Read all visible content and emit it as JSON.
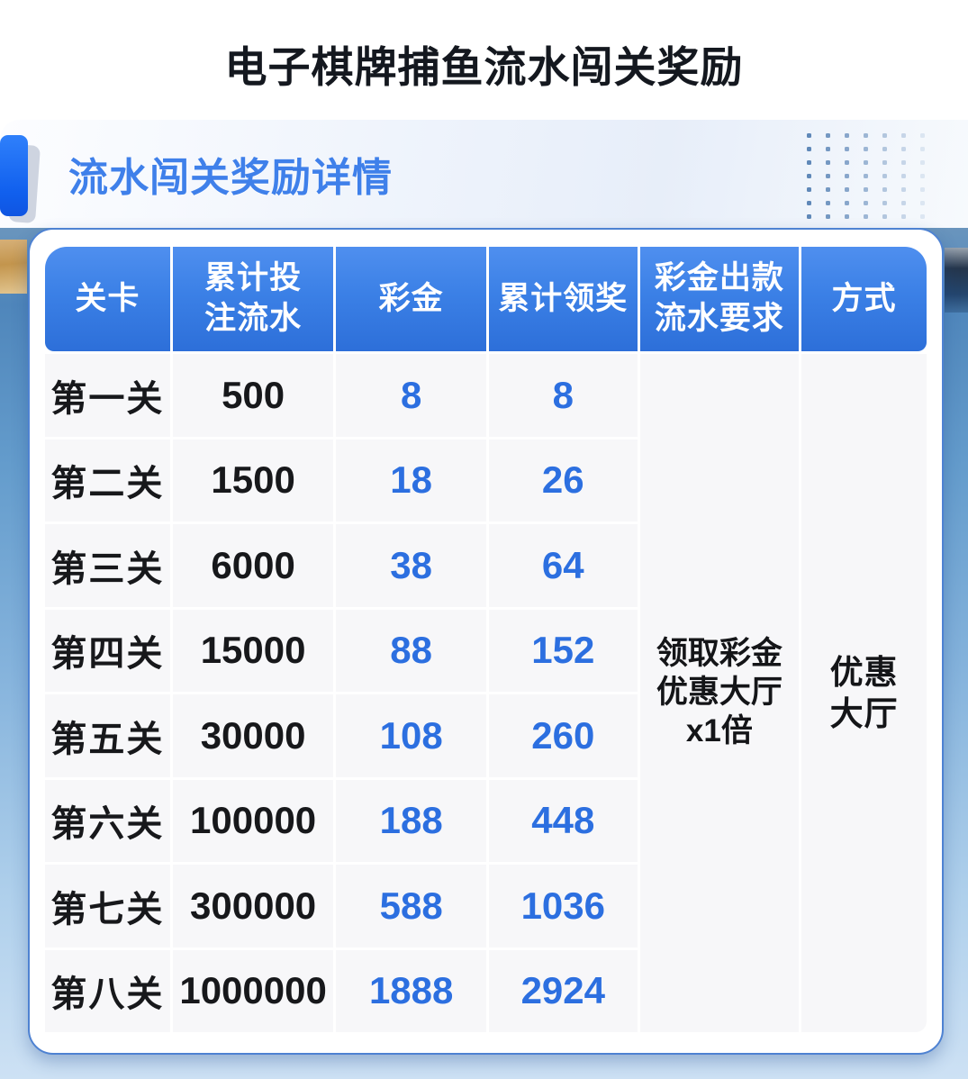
{
  "page": {
    "title": "电子棋牌捕鱼流水闯关奖励"
  },
  "section": {
    "title": "流水闯关奖励详情"
  },
  "table": {
    "headers": [
      "关卡",
      "累计投\n注流水",
      "彩金",
      "累计领奖",
      "彩金出款\n流水要求",
      "方式"
    ],
    "rows": [
      {
        "level": "第一关",
        "turnover": "500",
        "bonus": "8",
        "cumulative": "8"
      },
      {
        "level": "第二关",
        "turnover": "1500",
        "bonus": "18",
        "cumulative": "26"
      },
      {
        "level": "第三关",
        "turnover": "6000",
        "bonus": "38",
        "cumulative": "64"
      },
      {
        "level": "第四关",
        "turnover": "15000",
        "bonus": "88",
        "cumulative": "152"
      },
      {
        "level": "第五关",
        "turnover": "30000",
        "bonus": "108",
        "cumulative": "260"
      },
      {
        "level": "第六关",
        "turnover": "100000",
        "bonus": "188",
        "cumulative": "448"
      },
      {
        "level": "第七关",
        "turnover": "300000",
        "bonus": "588",
        "cumulative": "1036"
      },
      {
        "level": "第八关",
        "turnover": "1000000",
        "bonus": "1888",
        "cumulative": "2924"
      }
    ],
    "merged": {
      "requirement": "领取彩金\n优惠大厅\nx1倍",
      "method": "优惠\n大厅"
    }
  },
  "colors": {
    "accent_blue": "#1160ee",
    "header_gradient_top": "#4f8fef",
    "header_gradient_bottom": "#2d6fd9",
    "number_blue": "#2c6fe0",
    "title_black": "#14181f",
    "section_title_blue": "#3f80ea",
    "card_border": "#4e82d2",
    "cell_bg": "#f7f7f9",
    "beige_patch": "#c3954d",
    "dark_patch": "#25364c"
  },
  "decor": {
    "dot_grid": {
      "cols": 7,
      "rows": 7
    }
  }
}
